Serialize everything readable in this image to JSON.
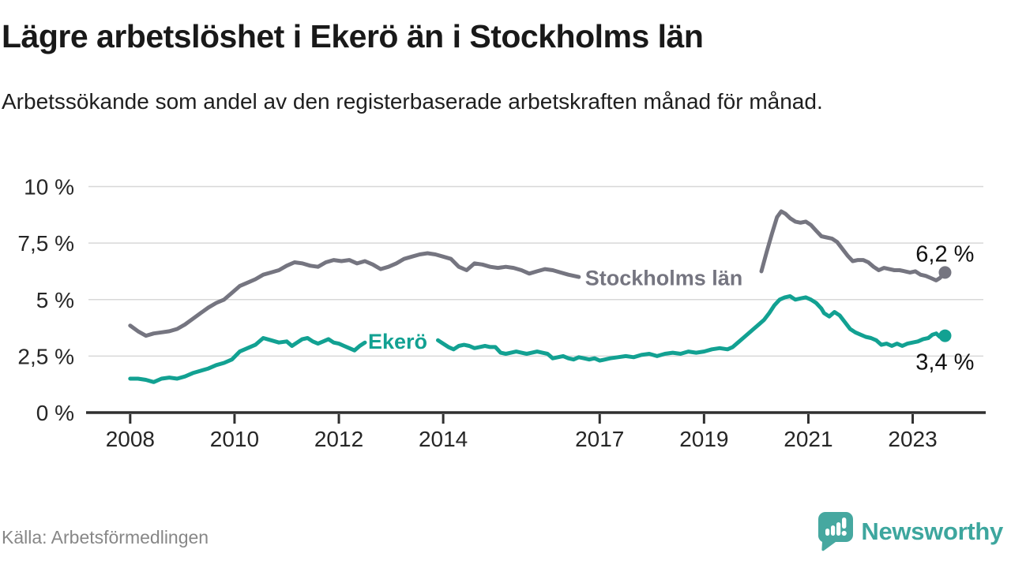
{
  "header": {
    "title": "Lägre arbetslöshet i Ekerö än i Stockholms län",
    "subtitle": "Arbetssökande som andel av den registerbaserade arbetskraften månad för månad."
  },
  "footer": {
    "source": "Källa: Arbetsförmedlingen",
    "logo_text": "Newsworthy",
    "logo_color": "#46a8a0",
    "logo_text_color": "#3da69e"
  },
  "chart_data": {
    "type": "line",
    "title": "Lägre arbetslöshet i Ekerö än i Stockholms län",
    "subtitle": "Arbetssökande som andel av den registerbaserade arbetskraften månad för månad.",
    "xlabel": "",
    "ylabel": "",
    "unit": "%",
    "xlim": [
      2007.2,
      2024.4
    ],
    "ylim": [
      0,
      10
    ],
    "grid": "horizontal",
    "legend_position": "inline-on-line",
    "colors": {
      "grid": "#d8d8d8",
      "axis": "#2f2f2f",
      "text": "#262626"
    },
    "yticks": [
      {
        "value": 0,
        "label": "0 %"
      },
      {
        "value": 2.5,
        "label": "2,5 %"
      },
      {
        "value": 5,
        "label": "5 %"
      },
      {
        "value": 7.5,
        "label": "7,5 %"
      },
      {
        "value": 10,
        "label": "10 %"
      }
    ],
    "xticks": [
      {
        "value": 2008,
        "label": "2008"
      },
      {
        "value": 2010,
        "label": "2010"
      },
      {
        "value": 2012,
        "label": "2012"
      },
      {
        "value": 2014,
        "label": "2014"
      },
      {
        "value": 2017,
        "label": "2017"
      },
      {
        "value": 2019,
        "label": "2019"
      },
      {
        "value": 2021,
        "label": "2021"
      },
      {
        "value": 2023,
        "label": "2023"
      }
    ],
    "series": [
      {
        "id": "stockholms-lan",
        "name": "Stockholms län",
        "color": "#757580",
        "line_width": 5,
        "inline_label": {
          "text": "Stockholms län",
          "x": 2016.72,
          "y": 5.95,
          "align": "start"
        },
        "end_dot": true,
        "end_label": {
          "text": "6,2 %",
          "side": "above"
        },
        "last_value": 6.2,
        "segments": [
          [
            [
              2008.0,
              3.85
            ],
            [
              2008.15,
              3.6
            ],
            [
              2008.3,
              3.4
            ],
            [
              2008.45,
              3.5
            ],
            [
              2008.6,
              3.55
            ],
            [
              2008.75,
              3.6
            ],
            [
              2008.9,
              3.7
            ],
            [
              2009.05,
              3.9
            ],
            [
              2009.2,
              4.15
            ],
            [
              2009.35,
              4.4
            ],
            [
              2009.5,
              4.65
            ],
            [
              2009.65,
              4.85
            ],
            [
              2009.8,
              5.0
            ],
            [
              2009.95,
              5.3
            ],
            [
              2010.1,
              5.6
            ],
            [
              2010.25,
              5.75
            ],
            [
              2010.4,
              5.9
            ],
            [
              2010.55,
              6.1
            ],
            [
              2010.7,
              6.2
            ],
            [
              2010.85,
              6.3
            ],
            [
              2011.0,
              6.5
            ],
            [
              2011.15,
              6.65
            ],
            [
              2011.3,
              6.6
            ],
            [
              2011.45,
              6.5
            ],
            [
              2011.6,
              6.45
            ],
            [
              2011.75,
              6.65
            ],
            [
              2011.9,
              6.75
            ],
            [
              2012.05,
              6.7
            ],
            [
              2012.2,
              6.75
            ],
            [
              2012.35,
              6.6
            ],
            [
              2012.5,
              6.7
            ],
            [
              2012.65,
              6.55
            ],
            [
              2012.8,
              6.35
            ],
            [
              2012.95,
              6.45
            ],
            [
              2013.1,
              6.6
            ],
            [
              2013.25,
              6.8
            ],
            [
              2013.4,
              6.9
            ],
            [
              2013.55,
              7.0
            ],
            [
              2013.7,
              7.05
            ],
            [
              2013.85,
              7.0
            ],
            [
              2014.0,
              6.9
            ],
            [
              2014.15,
              6.8
            ],
            [
              2014.3,
              6.45
            ],
            [
              2014.45,
              6.3
            ],
            [
              2014.6,
              6.6
            ],
            [
              2014.75,
              6.55
            ],
            [
              2014.9,
              6.45
            ],
            [
              2015.05,
              6.4
            ],
            [
              2015.2,
              6.45
            ],
            [
              2015.35,
              6.4
            ],
            [
              2015.5,
              6.3
            ],
            [
              2015.65,
              6.15
            ],
            [
              2015.8,
              6.25
            ],
            [
              2015.95,
              6.35
            ],
            [
              2016.1,
              6.3
            ],
            [
              2016.25,
              6.2
            ],
            [
              2016.4,
              6.1
            ],
            [
              2016.6,
              6.0
            ]
          ],
          [
            [
              2020.1,
              6.25
            ],
            [
              2020.2,
              7.1
            ],
            [
              2020.3,
              7.9
            ],
            [
              2020.4,
              8.65
            ],
            [
              2020.48,
              8.9
            ],
            [
              2020.56,
              8.8
            ],
            [
              2020.65,
              8.6
            ],
            [
              2020.75,
              8.45
            ],
            [
              2020.85,
              8.4
            ],
            [
              2020.95,
              8.45
            ],
            [
              2021.05,
              8.3
            ],
            [
              2021.15,
              8.05
            ],
            [
              2021.25,
              7.8
            ],
            [
              2021.35,
              7.75
            ],
            [
              2021.45,
              7.7
            ],
            [
              2021.55,
              7.55
            ],
            [
              2021.65,
              7.25
            ],
            [
              2021.75,
              6.95
            ],
            [
              2021.85,
              6.7
            ],
            [
              2021.95,
              6.75
            ],
            [
              2022.05,
              6.75
            ],
            [
              2022.15,
              6.65
            ],
            [
              2022.25,
              6.45
            ],
            [
              2022.35,
              6.3
            ],
            [
              2022.45,
              6.4
            ],
            [
              2022.55,
              6.35
            ],
            [
              2022.65,
              6.3
            ],
            [
              2022.75,
              6.3
            ],
            [
              2022.85,
              6.25
            ],
            [
              2022.95,
              6.2
            ],
            [
              2023.05,
              6.25
            ],
            [
              2023.15,
              6.1
            ],
            [
              2023.25,
              6.05
            ],
            [
              2023.35,
              5.95
            ],
            [
              2023.45,
              5.85
            ],
            [
              2023.52,
              5.95
            ],
            [
              2023.58,
              6.1
            ],
            [
              2023.62,
              6.2
            ]
          ]
        ]
      },
      {
        "id": "ekero",
        "name": "Ekerö",
        "color": "#12a192",
        "line_width": 5,
        "inline_label": {
          "text": "Ekerö",
          "x": 2012.56,
          "y": 3.15,
          "align": "start"
        },
        "end_dot": true,
        "end_label": {
          "text": "3,4 %",
          "side": "below"
        },
        "last_value": 3.4,
        "segments": [
          [
            [
              2008.0,
              1.5
            ],
            [
              2008.15,
              1.5
            ],
            [
              2008.3,
              1.45
            ],
            [
              2008.45,
              1.35
            ],
            [
              2008.6,
              1.5
            ],
            [
              2008.75,
              1.55
            ],
            [
              2008.9,
              1.5
            ],
            [
              2009.05,
              1.6
            ],
            [
              2009.2,
              1.75
            ],
            [
              2009.35,
              1.85
            ],
            [
              2009.5,
              1.95
            ],
            [
              2009.65,
              2.1
            ],
            [
              2009.8,
              2.2
            ],
            [
              2009.95,
              2.35
            ],
            [
              2010.1,
              2.7
            ],
            [
              2010.25,
              2.85
            ],
            [
              2010.4,
              3.0
            ],
            [
              2010.55,
              3.3
            ],
            [
              2010.7,
              3.2
            ],
            [
              2010.85,
              3.1
            ],
            [
              2011.0,
              3.15
            ],
            [
              2011.1,
              2.95
            ],
            [
              2011.2,
              3.1
            ],
            [
              2011.3,
              3.25
            ],
            [
              2011.4,
              3.3
            ],
            [
              2011.5,
              3.15
            ],
            [
              2011.6,
              3.05
            ],
            [
              2011.7,
              3.15
            ],
            [
              2011.8,
              3.25
            ],
            [
              2011.9,
              3.1
            ],
            [
              2012.0,
              3.05
            ],
            [
              2012.1,
              2.95
            ],
            [
              2012.2,
              2.85
            ],
            [
              2012.3,
              2.75
            ],
            [
              2012.4,
              2.95
            ],
            [
              2012.5,
              3.1
            ]
          ],
          [
            [
              2013.9,
              3.2
            ],
            [
              2014.0,
              3.05
            ],
            [
              2014.1,
              2.9
            ],
            [
              2014.2,
              2.8
            ],
            [
              2014.3,
              2.95
            ],
            [
              2014.4,
              3.0
            ],
            [
              2014.5,
              2.95
            ],
            [
              2014.6,
              2.85
            ],
            [
              2014.7,
              2.9
            ],
            [
              2014.8,
              2.95
            ],
            [
              2014.9,
              2.9
            ],
            [
              2015.0,
              2.9
            ],
            [
              2015.1,
              2.65
            ],
            [
              2015.2,
              2.6
            ],
            [
              2015.3,
              2.65
            ],
            [
              2015.4,
              2.7
            ],
            [
              2015.5,
              2.65
            ],
            [
              2015.6,
              2.6
            ],
            [
              2015.7,
              2.65
            ],
            [
              2015.8,
              2.7
            ],
            [
              2015.9,
              2.65
            ],
            [
              2016.0,
              2.6
            ],
            [
              2016.1,
              2.4
            ],
            [
              2016.2,
              2.45
            ],
            [
              2016.3,
              2.5
            ],
            [
              2016.4,
              2.4
            ],
            [
              2016.5,
              2.35
            ],
            [
              2016.6,
              2.45
            ],
            [
              2016.7,
              2.4
            ],
            [
              2016.8,
              2.35
            ],
            [
              2016.9,
              2.4
            ],
            [
              2017.0,
              2.3
            ],
            [
              2017.1,
              2.35
            ],
            [
              2017.2,
              2.4
            ],
            [
              2017.35,
              2.45
            ],
            [
              2017.5,
              2.5
            ],
            [
              2017.65,
              2.45
            ],
            [
              2017.8,
              2.55
            ],
            [
              2017.95,
              2.6
            ],
            [
              2018.1,
              2.5
            ],
            [
              2018.25,
              2.6
            ],
            [
              2018.4,
              2.65
            ],
            [
              2018.55,
              2.6
            ],
            [
              2018.7,
              2.7
            ],
            [
              2018.85,
              2.65
            ],
            [
              2019.0,
              2.7
            ],
            [
              2019.15,
              2.8
            ],
            [
              2019.3,
              2.85
            ],
            [
              2019.45,
              2.8
            ],
            [
              2019.55,
              2.9
            ],
            [
              2019.65,
              3.1
            ],
            [
              2019.75,
              3.3
            ],
            [
              2019.85,
              3.5
            ],
            [
              2019.95,
              3.7
            ],
            [
              2020.05,
              3.9
            ],
            [
              2020.15,
              4.1
            ],
            [
              2020.25,
              4.4
            ],
            [
              2020.35,
              4.75
            ],
            [
              2020.45,
              5.0
            ],
            [
              2020.55,
              5.1
            ],
            [
              2020.65,
              5.15
            ],
            [
              2020.75,
              5.0
            ],
            [
              2020.85,
              5.05
            ],
            [
              2020.95,
              5.1
            ],
            [
              2021.05,
              5.0
            ],
            [
              2021.15,
              4.85
            ],
            [
              2021.25,
              4.6
            ],
            [
              2021.3,
              4.4
            ],
            [
              2021.4,
              4.25
            ],
            [
              2021.5,
              4.45
            ],
            [
              2021.6,
              4.3
            ],
            [
              2021.7,
              4.0
            ],
            [
              2021.8,
              3.7
            ],
            [
              2021.9,
              3.55
            ],
            [
              2022.0,
              3.45
            ],
            [
              2022.1,
              3.35
            ],
            [
              2022.2,
              3.3
            ],
            [
              2022.3,
              3.2
            ],
            [
              2022.4,
              3.0
            ],
            [
              2022.5,
              3.05
            ],
            [
              2022.6,
              2.95
            ],
            [
              2022.7,
              3.05
            ],
            [
              2022.8,
              2.95
            ],
            [
              2022.9,
              3.05
            ],
            [
              2023.0,
              3.1
            ],
            [
              2023.1,
              3.15
            ],
            [
              2023.2,
              3.25
            ],
            [
              2023.3,
              3.3
            ],
            [
              2023.38,
              3.45
            ],
            [
              2023.45,
              3.5
            ],
            [
              2023.52,
              3.35
            ],
            [
              2023.62,
              3.4
            ]
          ]
        ]
      }
    ]
  }
}
